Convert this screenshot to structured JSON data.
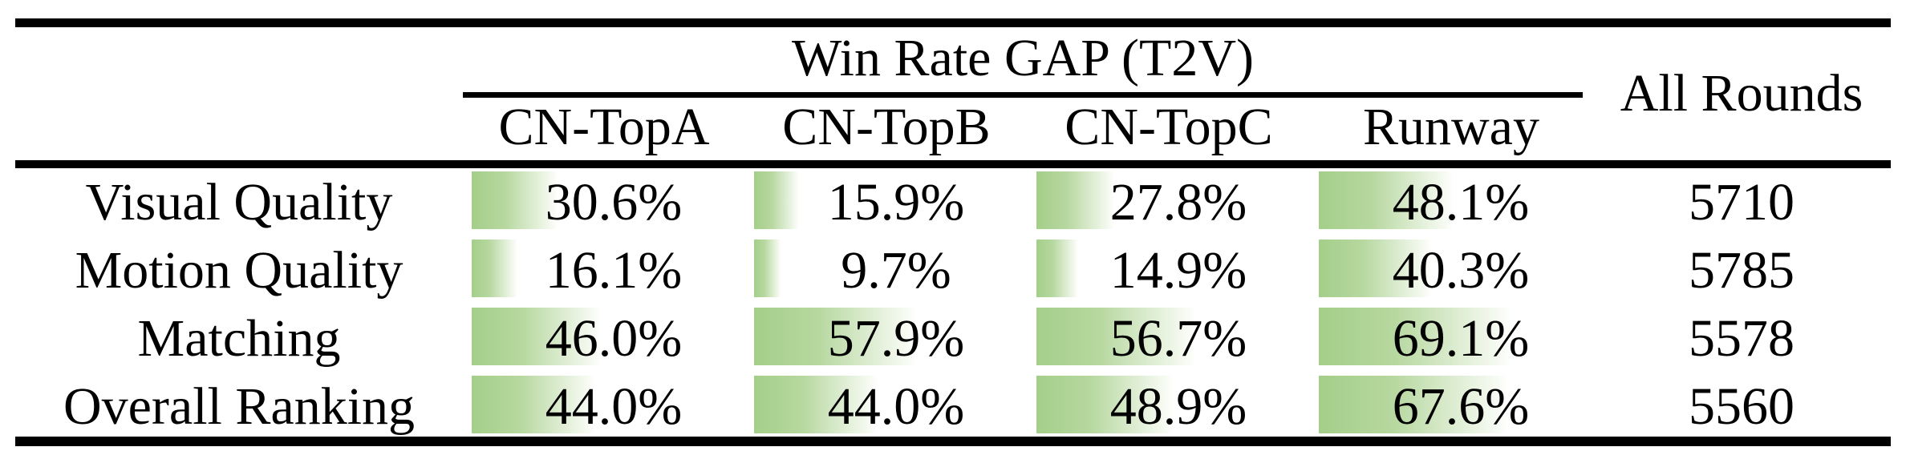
{
  "table": {
    "title": "Win Rate GAP (T2V)",
    "all_rounds_label": "All Rounds",
    "columns": [
      "CN-TopA",
      "CN-TopB",
      "CN-TopC",
      "Runway"
    ],
    "rows": [
      {
        "label": "Visual Quality",
        "cells": [
          {
            "text": "30.6%",
            "value": 30.6
          },
          {
            "text": "15.9%",
            "value": 15.9
          },
          {
            "text": "27.8%",
            "value": 27.8
          },
          {
            "text": "48.1%",
            "value": 48.1
          }
        ],
        "all_rounds": "5710"
      },
      {
        "label": "Motion Quality",
        "cells": [
          {
            "text": "16.1%",
            "value": 16.1
          },
          {
            "text": "9.7%",
            "value": 9.7
          },
          {
            "text": "14.9%",
            "value": 14.9
          },
          {
            "text": "40.3%",
            "value": 40.3
          }
        ],
        "all_rounds": "5785"
      },
      {
        "label": "Matching",
        "cells": [
          {
            "text": "46.0%",
            "value": 46.0
          },
          {
            "text": "57.9%",
            "value": 57.9
          },
          {
            "text": "56.7%",
            "value": 56.7
          },
          {
            "text": "69.1%",
            "value": 69.1
          }
        ],
        "all_rounds": "5578"
      },
      {
        "label": "Overall Ranking",
        "cells": [
          {
            "text": "44.0%",
            "value": 44.0
          },
          {
            "text": "44.0%",
            "value": 44.0
          },
          {
            "text": "48.9%",
            "value": 48.9
          },
          {
            "text": "67.6%",
            "value": 67.6
          }
        ],
        "all_rounds": "5560"
      }
    ],
    "colors": {
      "bar_green": "#a6cf8c",
      "bar_fade": "#ffffff",
      "rule_black": "#000000"
    }
  }
}
